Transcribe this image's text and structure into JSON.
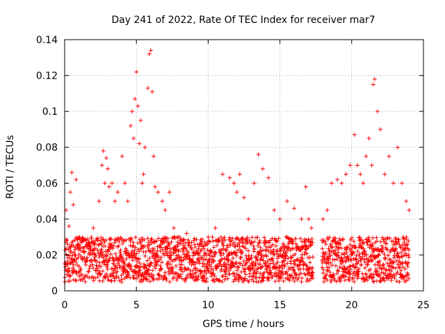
{
  "chart_data": {
    "type": "scatter",
    "title": "Day 241 of 2022, Rate Of TEC Index for receiver mar7",
    "xlabel": "GPS time / hours",
    "ylabel": "ROTI / TECUs",
    "xlim": [
      0,
      25
    ],
    "ylim": [
      0,
      0.14
    ],
    "x_ticks": [
      "0",
      "5",
      "10",
      "15",
      "20",
      "25"
    ],
    "y_ticks": [
      "0",
      "0.02",
      "0.04",
      "0.06",
      "0.08",
      "0.1",
      "0.12",
      "0.14"
    ],
    "grid": true,
    "marker": "+",
    "color": "#ff0000",
    "series": [
      {
        "x": [
          0.1,
          0.3,
          0.4,
          0.5,
          0.6,
          0.8,
          1.0,
          1.3,
          1.6,
          2.0,
          2.4,
          2.6,
          2.7,
          2.8,
          2.9,
          3.0,
          3.1,
          3.3,
          3.5,
          3.7,
          4.0,
          4.2,
          4.4,
          4.6,
          4.7,
          4.8,
          4.9,
          5.0,
          5.1,
          5.2,
          5.3,
          5.4,
          5.5,
          5.6,
          5.8,
          5.9,
          6.0,
          6.1,
          6.2,
          6.3,
          6.5,
          6.8,
          7.0,
          7.3,
          7.6,
          8.0,
          8.5,
          9.0,
          9.5,
          10.0,
          10.5,
          11.0,
          11.5,
          11.8,
          12.0,
          12.2,
          12.5,
          12.8,
          13.2,
          13.5,
          13.8,
          14.2,
          14.6,
          15.0,
          15.5,
          16.0,
          16.5,
          16.8,
          17.0,
          17.2,
          18.0,
          18.3,
          18.6,
          19.0,
          19.3,
          19.6,
          19.9,
          20.2,
          20.4,
          20.6,
          20.8,
          21.0,
          21.2,
          21.4,
          21.5,
          21.6,
          21.8,
          22.0,
          22.3,
          22.6,
          22.9,
          23.2,
          23.5,
          23.8,
          24.0
        ],
        "y": [
          0.045,
          0.036,
          0.055,
          0.066,
          0.048,
          0.062,
          0.03,
          0.024,
          0.026,
          0.035,
          0.05,
          0.07,
          0.078,
          0.06,
          0.074,
          0.068,
          0.058,
          0.06,
          0.05,
          0.055,
          0.075,
          0.06,
          0.05,
          0.092,
          0.1,
          0.085,
          0.107,
          0.122,
          0.103,
          0.082,
          0.095,
          0.06,
          0.065,
          0.08,
          0.113,
          0.132,
          0.134,
          0.111,
          0.075,
          0.058,
          0.055,
          0.05,
          0.045,
          0.055,
          0.035,
          0.03,
          0.032,
          0.028,
          0.026,
          0.03,
          0.035,
          0.065,
          0.063,
          0.06,
          0.055,
          0.065,
          0.052,
          0.04,
          0.06,
          0.076,
          0.068,
          0.063,
          0.045,
          0.04,
          0.05,
          0.046,
          0.04,
          0.058,
          0.04,
          0.035,
          0.04,
          0.045,
          0.06,
          0.062,
          0.06,
          0.065,
          0.07,
          0.087,
          0.07,
          0.065,
          0.06,
          0.075,
          0.085,
          0.07,
          0.115,
          0.118,
          0.1,
          0.09,
          0.065,
          0.075,
          0.06,
          0.08,
          0.06,
          0.05,
          0.045
        ]
      }
    ],
    "baseline_band": {
      "x_range": [
        0,
        24
      ],
      "gap": [
        17.3,
        17.9
      ],
      "y_range": [
        0.005,
        0.03
      ]
    }
  }
}
